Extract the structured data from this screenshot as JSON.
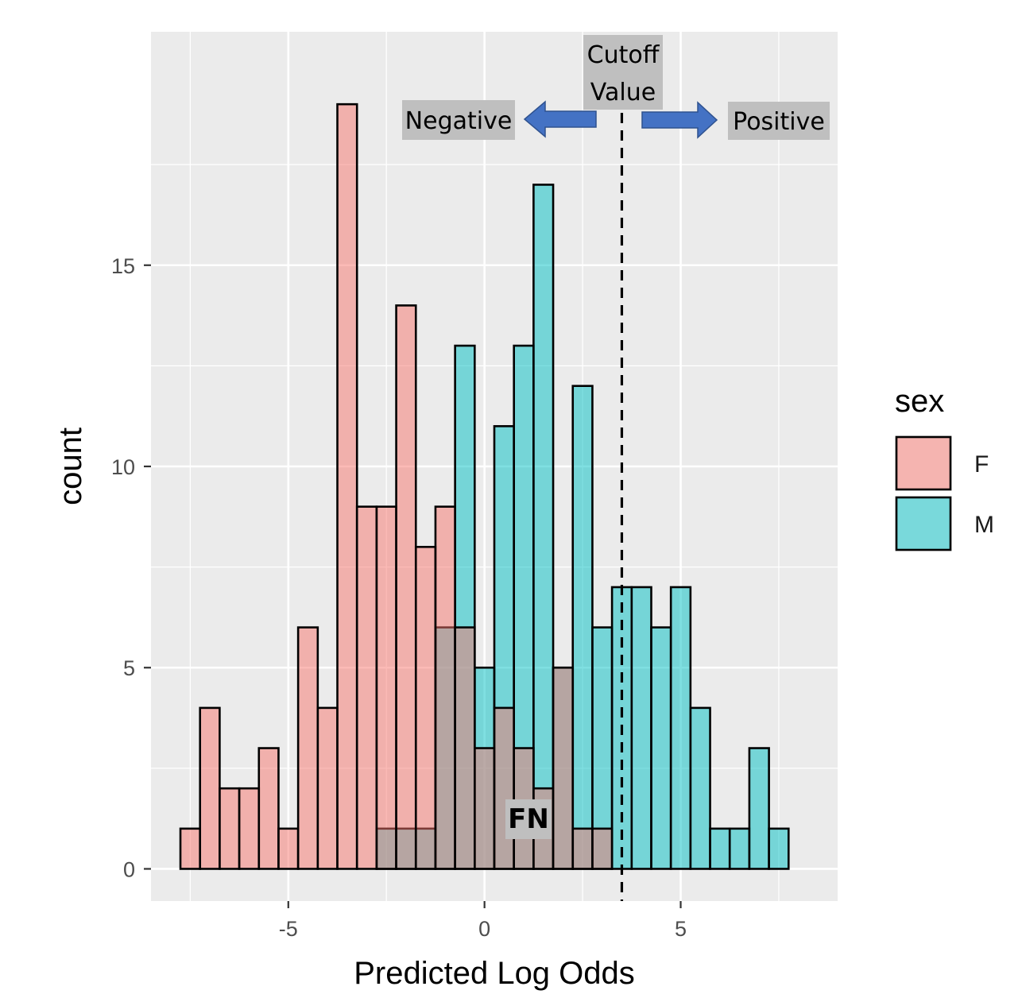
{
  "chart_data": {
    "type": "bar",
    "subtype": "overlapping-histogram",
    "xlabel": "Predicted Log Odds",
    "ylabel": "count",
    "xlim": [
      -8.5,
      9.0
    ],
    "ylim": [
      -0.8,
      20.8
    ],
    "x_ticks": [
      -5,
      0,
      5
    ],
    "x_tick_labels": [
      "-5",
      "0",
      "5"
    ],
    "y_ticks": [
      0,
      5,
      10,
      15
    ],
    "y_tick_labels": [
      "0",
      "5",
      "10",
      "15"
    ],
    "grid": true,
    "bin_starts": [
      -7.75,
      -7.25,
      -6.75,
      -6.25,
      -5.75,
      -5.25,
      -4.75,
      -4.25,
      -3.75,
      -3.25,
      -2.75,
      -2.25,
      -1.75,
      -1.25,
      -0.75,
      -0.25,
      0.25,
      0.75,
      1.25,
      1.75,
      2.25,
      2.75,
      3.25,
      3.75,
      4.25,
      4.75,
      5.25,
      5.75,
      6.25,
      6.75,
      7.25,
      7.75
    ],
    "bin_width": 0.5,
    "series": [
      {
        "name": "F",
        "color": "#F8766D",
        "values": [
          1,
          4,
          2,
          2,
          3,
          1,
          6,
          4,
          19,
          9,
          9,
          14,
          8,
          9,
          6,
          3,
          4,
          3,
          2,
          5,
          1,
          1,
          0,
          0,
          0,
          0,
          0,
          0,
          0,
          0,
          0,
          0
        ]
      },
      {
        "name": "M",
        "color": "#00BFC4",
        "values": [
          0,
          0,
          0,
          0,
          0,
          0,
          0,
          0,
          0,
          0,
          1,
          1,
          1,
          6,
          13,
          5,
          11,
          13,
          17,
          5,
          12,
          6,
          7,
          7,
          6,
          7,
          4,
          1,
          1,
          3,
          1,
          0
        ]
      }
    ],
    "legend": {
      "title": "sex",
      "position": "right",
      "entries": [
        "F",
        "M"
      ]
    },
    "cutoff": {
      "x": 3.5,
      "label_line1": "Cutoff",
      "label_line2": "Value",
      "negative_label": "Negative",
      "positive_label": "Positive",
      "fn_label": "FN"
    },
    "colors": {
      "panel_background": "#EBEBEB",
      "grid": "#FFFFFF",
      "annotation_box": "#BFBFBF",
      "arrow": "#4472C4"
    }
  }
}
